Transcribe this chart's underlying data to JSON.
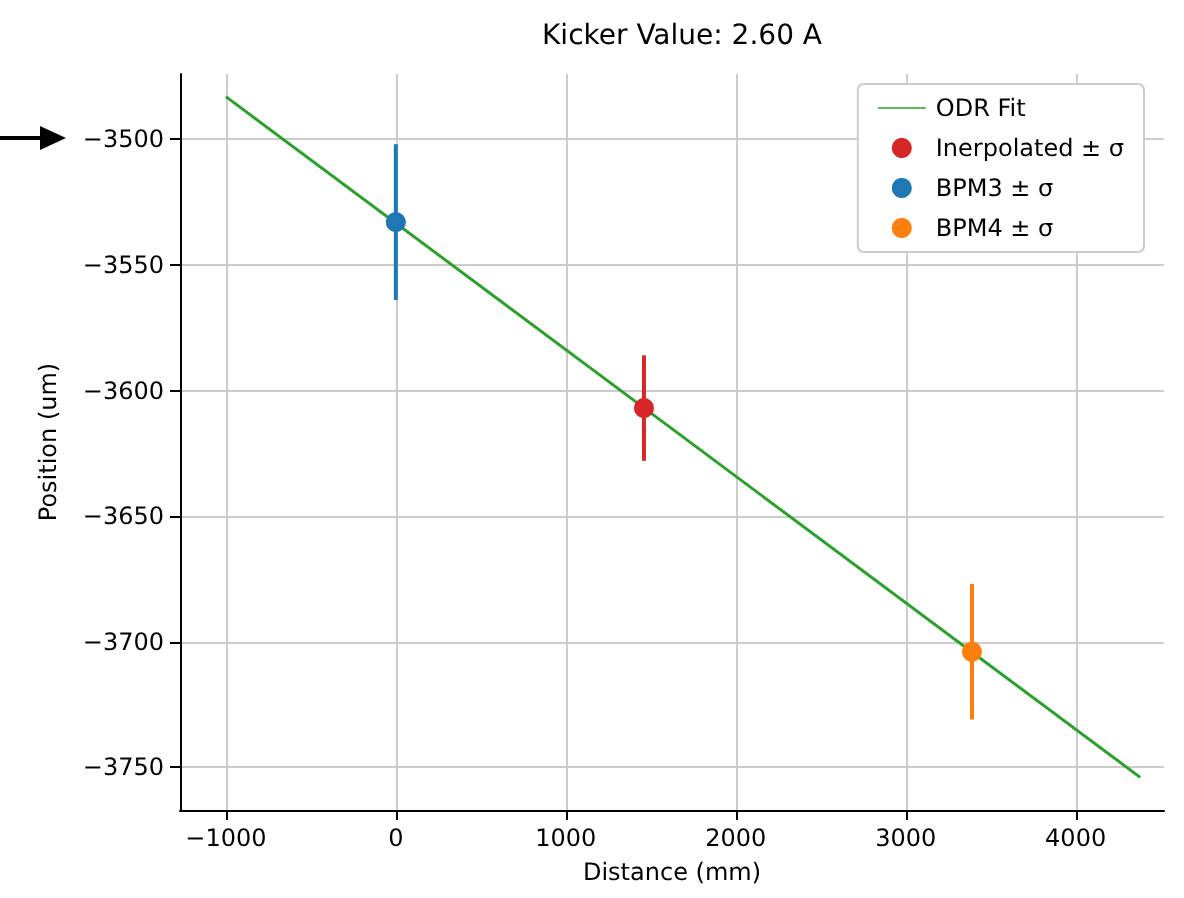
{
  "chart_data": {
    "type": "scatter",
    "title": "Kicker Value: 2.60 A",
    "xlabel": "Distance (mm)",
    "ylabel": "Position (um)",
    "series": [
      {
        "name": "ODR Fit",
        "type": "line",
        "color": "#2ca02c",
        "x": [
          -1000,
          4380
        ],
        "values": [
          -3483,
          -3754
        ],
        "marker": "none"
      },
      {
        "name": "Inerpolated ± σ",
        "color": "#d62728",
        "x": [
          1460
        ],
        "values": [
          -3607
        ],
        "errors": [
          21
        ]
      },
      {
        "name": "BPM3 ± σ",
        "color": "#1f77b4",
        "x": [
          0
        ],
        "values": [
          -3533
        ],
        "errors": [
          31
        ]
      },
      {
        "name": "BPM4 ± σ",
        "color": "#ff7f0e",
        "x": [
          3390
        ],
        "values": [
          -3704
        ],
        "errors": [
          27
        ]
      }
    ],
    "marker": "circle",
    "xlim": [
      -1270,
      4520
    ],
    "xticks": [
      -1000,
      0,
      1000,
      2000,
      3000,
      4000
    ],
    "ylim": [
      -3767,
      -3474
    ],
    "yticks": [
      -3750,
      -3700,
      -3650,
      -3600,
      -3550,
      -3500
    ],
    "grid": true,
    "legend": "top right"
  }
}
